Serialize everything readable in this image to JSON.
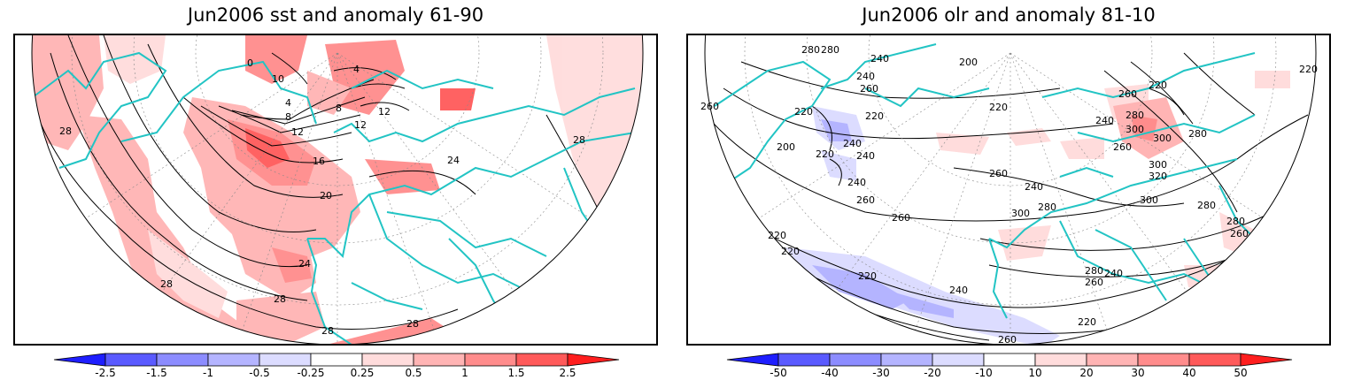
{
  "left_panel": {
    "title": "Jun2006 sst and anomaly 61-90",
    "contour_labels": [
      "28",
      "28",
      "28",
      "28",
      "28",
      "24",
      "20",
      "16",
      "12",
      "8",
      "4",
      "8",
      "12",
      "12",
      "10",
      "0",
      "4",
      "24",
      "28"
    ],
    "colorbar": {
      "labels": [
        "-2.5",
        "-1.5",
        "-1",
        "-0.5",
        "-0.25",
        "0.25",
        "0.5",
        "1",
        "1.5",
        "2.5"
      ],
      "colors": [
        "#1e1eff",
        "#5a5aff",
        "#8c8cff",
        "#b4b4ff",
        "#dcdcff",
        "#ffffff",
        "#ffdcdc",
        "#ffb4b4",
        "#ff8c8c",
        "#ff5a5a",
        "#ff1e1e"
      ]
    }
  },
  "right_panel": {
    "title": "Jun2006 olr and anomaly 81-10",
    "contour_labels": [
      "280",
      "280",
      "240",
      "200",
      "240",
      "220",
      "260",
      "200",
      "220",
      "240",
      "260",
      "220",
      "240",
      "220",
      "260",
      "300",
      "280",
      "260",
      "300",
      "320",
      "240",
      "240",
      "260",
      "260",
      "300",
      "280",
      "300",
      "280",
      "240",
      "220",
      "220",
      "260",
      "220",
      "240",
      "220",
      "260",
      "280",
      "260",
      "240",
      "300",
      "280",
      "280",
      "260",
      "220",
      "220"
    ],
    "colorbar": {
      "labels": [
        "-50",
        "-40",
        "-30",
        "-20",
        "-10",
        "10",
        "20",
        "30",
        "40",
        "50"
      ],
      "colors": [
        "#1e1eff",
        "#5a5aff",
        "#8c8cff",
        "#b4b4ff",
        "#dcdcff",
        "#ffffff",
        "#ffdcdc",
        "#ffb4b4",
        "#ff8c8c",
        "#ff5a5a",
        "#ff1e1e"
      ]
    }
  },
  "style": {
    "coastline_color": "#22c4c4",
    "contour_color": "#000000",
    "grid_color": "#888888"
  }
}
